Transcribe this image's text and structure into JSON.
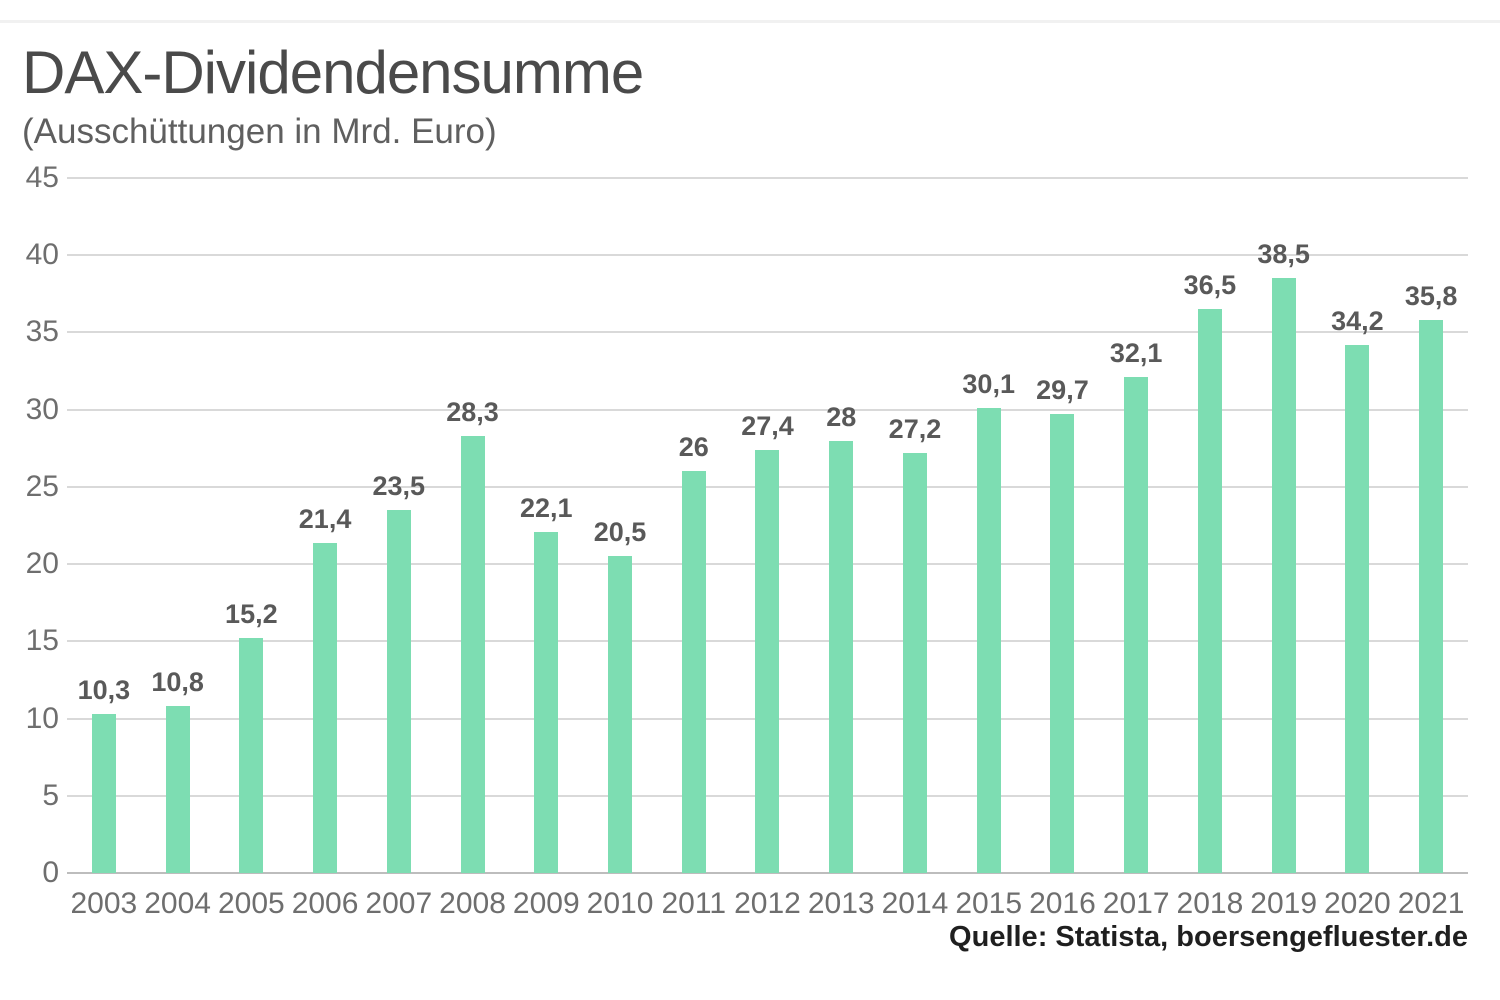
{
  "header": {
    "title": "DAX-Dividendensumme",
    "subtitle": "(Ausschüttungen in Mrd. Euro)"
  },
  "footer": {
    "source": "Quelle: Statista, boersengefluester.de"
  },
  "colors": {
    "bar": "#7dddb2",
    "gridline": "#d9d9d9",
    "baseline": "#bdbdbd",
    "axis_text": "#6e6e6e",
    "value_label_text": "#595959",
    "title_text": "#4a4a4a",
    "source_text": "#1f1f1f",
    "background": "#ffffff"
  },
  "chart_data": {
    "type": "bar",
    "title": "DAX-Dividendensumme",
    "subtitle": "(Ausschüttungen in Mrd. Euro)",
    "xlabel": "",
    "ylabel": "",
    "categories": [
      "2003",
      "2004",
      "2005",
      "2006",
      "2007",
      "2008",
      "2009",
      "2010",
      "2011",
      "2012",
      "2013",
      "2014",
      "2015",
      "2016",
      "2017",
      "2018",
      "2019",
      "2020",
      "2021"
    ],
    "values": [
      10.3,
      10.8,
      15.2,
      21.4,
      23.5,
      28.3,
      22.1,
      20.5,
      26,
      27.4,
      28,
      27.2,
      30.1,
      29.7,
      32.1,
      36.5,
      38.5,
      34.2,
      35.8
    ],
    "value_labels": [
      "10,3",
      "10,8",
      "15,2",
      "21,4",
      "23,5",
      "28,3",
      "22,1",
      "20,5",
      "26",
      "27,4",
      "28",
      "27,2",
      "30,1",
      "29,7",
      "32,1",
      "36,5",
      "38,5",
      "34,2",
      "35,8"
    ],
    "ylim": [
      0,
      45
    ],
    "yticks": [
      0,
      5,
      10,
      15,
      20,
      25,
      30,
      35,
      40,
      45
    ],
    "grid": true,
    "legend": null,
    "source": "Quelle: Statista, boersengefluester.de"
  }
}
